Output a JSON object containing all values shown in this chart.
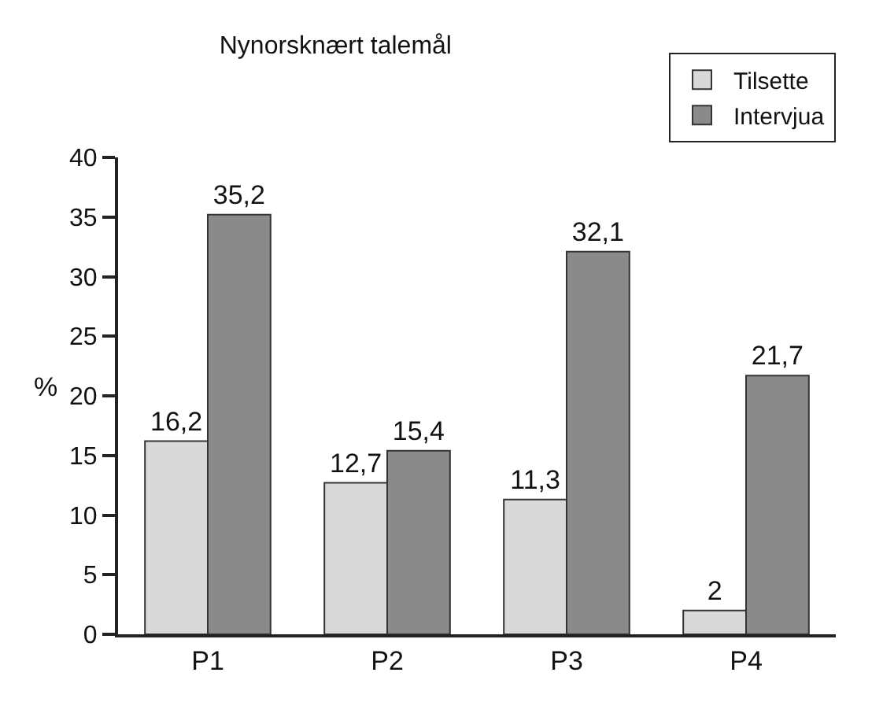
{
  "chart_data": {
    "type": "bar",
    "title": "Nynorsknært talemål",
    "ylabel": "%",
    "categories": [
      "P1",
      "P2",
      "P3",
      "P4"
    ],
    "series": [
      {
        "name": "Tilsette",
        "color": "#d9d9d9",
        "values": [
          16.2,
          12.7,
          11.3,
          2
        ],
        "value_labels": [
          "16,2",
          "12,7",
          "11,3",
          "2"
        ]
      },
      {
        "name": "Intervjua",
        "color": "#8a8a8a",
        "values": [
          35.2,
          15.4,
          32.1,
          21.7
        ],
        "value_labels": [
          "35,2",
          "15,4",
          "32,1",
          "21,7"
        ]
      }
    ],
    "ylim": [
      0,
      40
    ],
    "yticks": [
      0,
      5,
      10,
      15,
      20,
      25,
      30,
      35,
      40
    ],
    "grid": false,
    "legend": "top right"
  }
}
